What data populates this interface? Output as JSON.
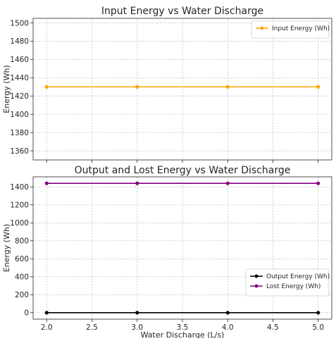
{
  "figure": {
    "xlabel": "Water Discharge (L/s)"
  },
  "chart_data": [
    {
      "type": "line",
      "title": "Input Energy vs Water Discharge",
      "xlabel": "",
      "ylabel": "Energy (Wh)",
      "x": [
        2.0,
        3.0,
        4.0,
        5.0
      ],
      "xlim": [
        1.85,
        5.15
      ],
      "ylim": [
        1350,
        1505
      ],
      "yticks": [
        1360,
        1380,
        1400,
        1420,
        1440,
        1460,
        1480,
        1500
      ],
      "xticks": [
        2.0,
        2.5,
        3.0,
        3.5,
        4.0,
        4.5,
        5.0
      ],
      "show_x_tick_labels": false,
      "grid": true,
      "legend": "top-right",
      "series": [
        {
          "name": "Input Energy (Wh)",
          "values": [
            1430,
            1430,
            1430,
            1430
          ],
          "color": "#ffa500"
        }
      ]
    },
    {
      "type": "line",
      "title": "Output and Lost Energy vs Water Discharge",
      "xlabel": "Water Discharge (L/s)",
      "ylabel": "Energy (Wh)",
      "x": [
        2.0,
        3.0,
        4.0,
        5.0
      ],
      "xlim": [
        1.85,
        5.15
      ],
      "ylim": [
        -72,
        1512
      ],
      "yticks": [
        0,
        200,
        400,
        600,
        800,
        1000,
        1200,
        1400
      ],
      "xticks": [
        2.0,
        2.5,
        3.0,
        3.5,
        4.0,
        4.5,
        5.0
      ],
      "show_x_tick_labels": true,
      "grid": true,
      "legend": "center-right",
      "series": [
        {
          "name": "Output Energy (Wh)",
          "values": [
            0,
            0,
            0,
            0
          ],
          "color": "#000000"
        },
        {
          "name": "Lost Energy (Wh)",
          "values": [
            1440,
            1440,
            1440,
            1440
          ],
          "color": "#800080"
        }
      ]
    }
  ]
}
